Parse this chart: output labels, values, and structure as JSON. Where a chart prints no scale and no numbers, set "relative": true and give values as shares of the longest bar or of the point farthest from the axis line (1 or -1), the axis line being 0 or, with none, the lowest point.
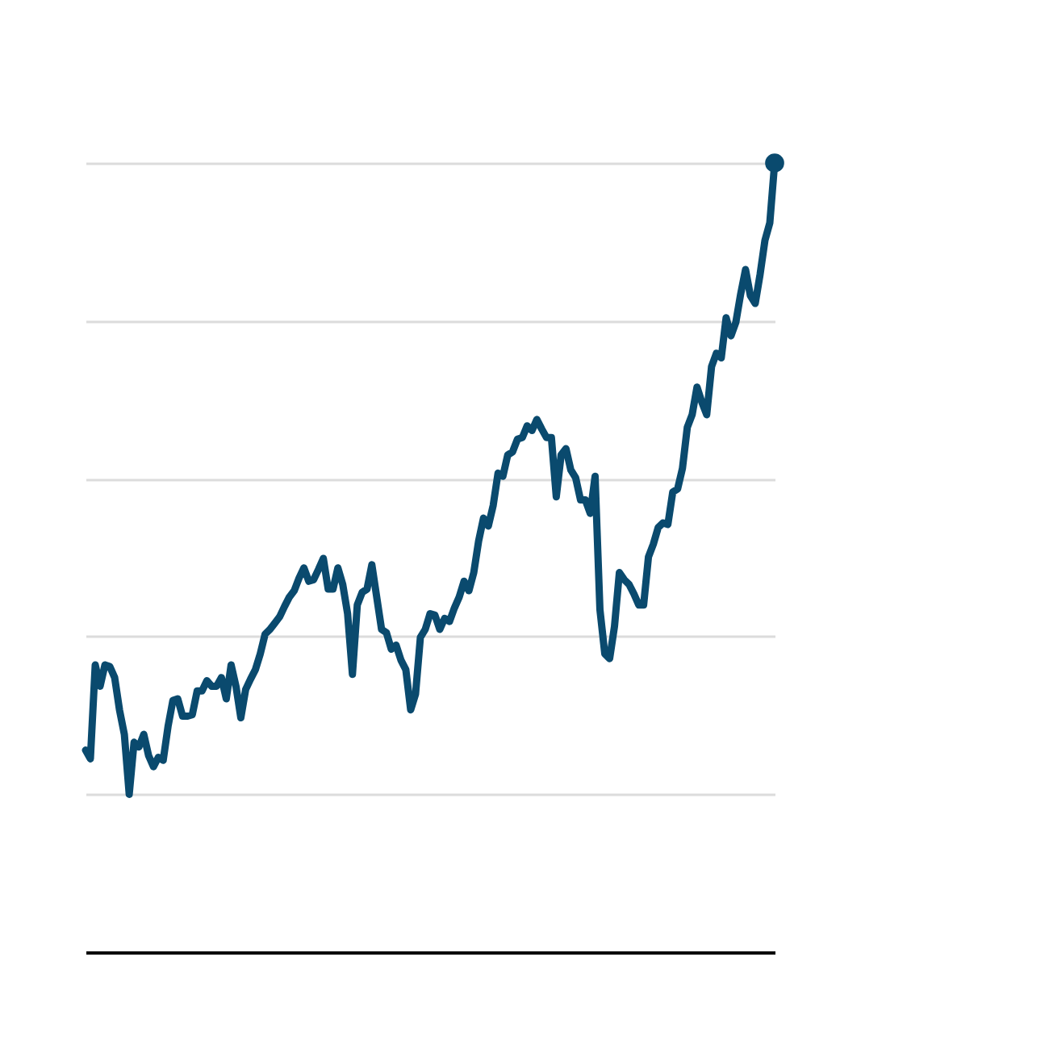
{
  "chart_data": {
    "type": "line",
    "relative": true,
    "grid": "y",
    "categories": [
      null,
      null,
      null,
      null,
      null,
      null,
      null,
      null,
      null,
      null,
      null,
      null,
      null,
      null,
      null,
      null,
      null,
      null,
      null,
      null,
      null,
      null,
      null,
      null,
      null,
      null,
      null,
      null,
      null,
      null,
      null,
      null,
      null,
      null,
      null,
      null,
      null,
      null,
      null,
      null,
      null,
      null,
      null,
      null,
      null,
      null,
      null,
      null,
      null,
      null,
      null,
      null,
      null,
      null,
      null,
      null,
      null,
      null,
      null,
      null,
      null,
      null,
      null,
      null,
      null,
      null,
      null,
      null,
      null,
      null,
      null,
      null,
      null,
      null,
      null,
      null,
      null,
      null,
      null,
      null,
      null,
      null,
      null,
      null,
      null,
      null,
      null,
      null,
      null,
      null,
      null,
      null,
      null,
      null,
      null,
      null,
      null,
      null,
      null,
      null,
      null,
      null,
      null,
      null,
      null,
      null,
      null,
      null,
      null,
      null,
      null,
      null,
      null,
      null,
      null,
      null,
      null,
      null,
      null,
      null,
      null,
      null,
      null,
      null,
      null,
      null,
      null,
      null,
      null,
      null,
      null,
      null,
      null,
      null,
      null,
      null,
      null,
      null,
      null,
      null,
      null,
      null,
      null
    ],
    "series": [
      {
        "color": "#0a4a6e",
        "values": [
          0.256,
          0.245,
          0.364,
          0.337,
          0.364,
          0.362,
          0.348,
          0.307,
          0.276,
          0.2,
          0.266,
          0.26,
          0.276,
          0.249,
          0.235,
          0.247,
          0.243,
          0.286,
          0.319,
          0.321,
          0.299,
          0.299,
          0.301,
          0.331,
          0.331,
          0.344,
          0.337,
          0.337,
          0.348,
          0.321,
          0.364,
          0.337,
          0.297,
          0.333,
          0.346,
          0.358,
          0.378,
          0.403,
          0.409,
          0.417,
          0.425,
          0.438,
          0.45,
          0.458,
          0.474,
          0.487,
          0.47,
          0.472,
          0.485,
          0.499,
          0.46,
          0.46,
          0.487,
          0.466,
          0.429,
          0.352,
          0.44,
          0.456,
          0.46,
          0.491,
          0.45,
          0.409,
          0.405,
          0.384,
          0.389,
          0.37,
          0.358,
          0.307,
          0.327,
          0.399,
          0.409,
          0.429,
          0.427,
          0.409,
          0.423,
          0.419,
          0.436,
          0.45,
          0.47,
          0.458,
          0.481,
          0.521,
          0.55,
          0.54,
          0.566,
          0.607,
          0.603,
          0.63,
          0.634,
          0.65,
          0.652,
          0.667,
          0.661,
          0.675,
          0.663,
          0.652,
          0.652,
          0.577,
          0.63,
          0.638,
          0.611,
          0.601,
          0.573,
          0.573,
          0.556,
          0.603,
          0.434,
          0.378,
          0.372,
          0.413,
          0.481,
          0.472,
          0.466,
          0.454,
          0.44,
          0.44,
          0.501,
          0.517,
          0.538,
          0.544,
          0.542,
          0.583,
          0.587,
          0.613,
          0.665,
          0.681,
          0.716,
          0.697,
          0.681,
          0.742,
          0.759,
          0.753,
          0.804,
          0.781,
          0.798,
          0.834,
          0.865,
          0.832,
          0.822,
          0.859,
          0.902,
          0.924,
          1
        ]
      },
      {
        "color": "#0a4a6e",
        "marker": "circle",
        "values": [
          null,
          null,
          null,
          null,
          null,
          null,
          null,
          null,
          null,
          null,
          null,
          null,
          null,
          null,
          null,
          null,
          null,
          null,
          null,
          null,
          null,
          null,
          null,
          null,
          null,
          null,
          null,
          null,
          null,
          null,
          null,
          null,
          null,
          null,
          null,
          null,
          null,
          null,
          null,
          null,
          null,
          null,
          null,
          null,
          null,
          null,
          null,
          null,
          null,
          null,
          null,
          null,
          null,
          null,
          null,
          null,
          null,
          null,
          null,
          null,
          null,
          null,
          null,
          null,
          null,
          null,
          null,
          null,
          null,
          null,
          null,
          null,
          null,
          null,
          null,
          null,
          null,
          null,
          null,
          null,
          null,
          null,
          null,
          null,
          null,
          null,
          null,
          null,
          null,
          null,
          null,
          null,
          null,
          null,
          null,
          null,
          null,
          null,
          null,
          null,
          null,
          null,
          null,
          null,
          null,
          null,
          null,
          null,
          null,
          null,
          null,
          null,
          null,
          null,
          null,
          null,
          null,
          null,
          null,
          null,
          null,
          null,
          null,
          null,
          null,
          null,
          null,
          null,
          null,
          null,
          null,
          null,
          null,
          null,
          null,
          null,
          null,
          null,
          null,
          null,
          null,
          null,
          1
        ]
      }
    ]
  }
}
